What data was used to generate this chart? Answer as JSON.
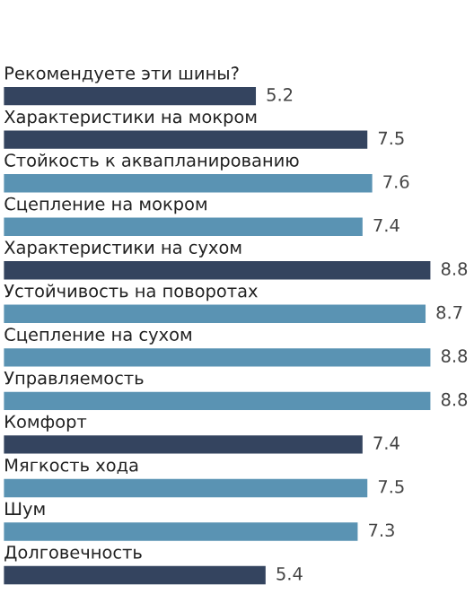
{
  "chart_data": {
    "type": "bar",
    "orientation": "horizontal",
    "categories": [
      "Рекомендуете эти шины?",
      "Характеристики на мокром",
      "Стойкость к аквапланированию",
      "Сцепление на мокром",
      "Характеристики на сухом",
      "Устойчивость на поворотах",
      "Сцепление на сухом",
      "Управляемость",
      "Комфорт",
      "Мягкость хода",
      "Шум",
      "Долговечность"
    ],
    "values": [
      5.2,
      7.5,
      7.6,
      7.4,
      8.8,
      8.7,
      8.8,
      8.8,
      7.4,
      7.5,
      7.3,
      5.4
    ],
    "colors": [
      "#34445f",
      "#34445f",
      "#5a93b3",
      "#5a93b3",
      "#34445f",
      "#5a93b3",
      "#5a93b3",
      "#5a93b3",
      "#34445f",
      "#5a93b3",
      "#5a93b3",
      "#34445f"
    ],
    "data_labels": true
  }
}
